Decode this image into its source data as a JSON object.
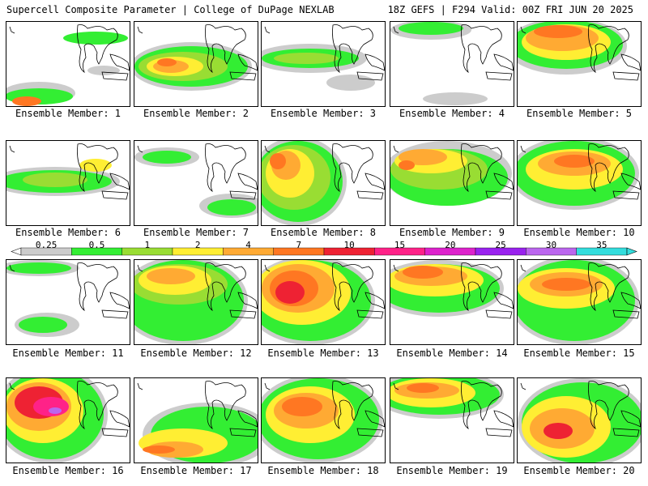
{
  "header": {
    "left": "Supercell Composite Parameter | College of DuPage NEXLAB",
    "right": "18Z GEFS | F294 Valid: 00Z FRI JUN 20 2025"
  },
  "legend": {
    "labels": [
      "0.25",
      "0.5",
      "1",
      "2",
      "4",
      "7",
      "10",
      "15",
      "20",
      "25",
      "30",
      "35"
    ],
    "colors": [
      "#cccccc",
      "#33ee33",
      "#99dd33",
      "#ffee33",
      "#ffaa33",
      "#ff7722",
      "#ee2233",
      "#ff2288",
      "#dd22cc",
      "#9922ee",
      "#bb66ee",
      "#33dddd"
    ]
  },
  "members": [
    {
      "label": "Ensemble Member: 1"
    },
    {
      "label": "Ensemble Member: 2"
    },
    {
      "label": "Ensemble Member: 3"
    },
    {
      "label": "Ensemble Member: 4"
    },
    {
      "label": "Ensemble Member: 5"
    },
    {
      "label": "Ensemble Member: 6"
    },
    {
      "label": "Ensemble Member: 7"
    },
    {
      "label": "Ensemble Member: 8"
    },
    {
      "label": "Ensemble Member: 9"
    },
    {
      "label": "Ensemble Member: 10"
    },
    {
      "label": "Ensemble Member: 11"
    },
    {
      "label": "Ensemble Member: 12"
    },
    {
      "label": "Ensemble Member: 13"
    },
    {
      "label": "Ensemble Member: 14"
    },
    {
      "label": "Ensemble Member: 15"
    },
    {
      "label": "Ensemble Member: 16"
    },
    {
      "label": "Ensemble Member: 17"
    },
    {
      "label": "Ensemble Member: 18"
    },
    {
      "label": "Ensemble Member: 19"
    },
    {
      "label": "Ensemble Member: 20"
    }
  ]
}
